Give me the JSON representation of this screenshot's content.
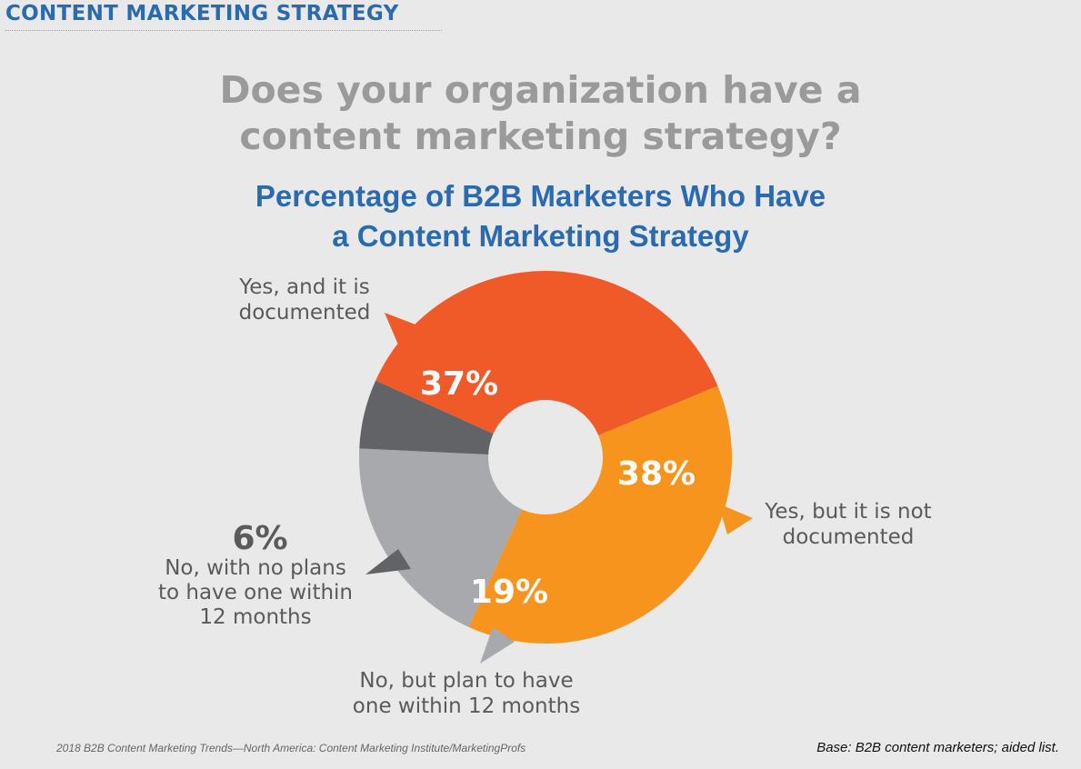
{
  "header": {
    "title": "CONTENT MARKETING STRATEGY"
  },
  "question": {
    "line1": "Does your organization have a",
    "line2": "content marketing strategy?"
  },
  "chart_data": {
    "type": "pie",
    "title": "Percentage of B2B Marketers Who Have",
    "title_line2": "a Content Marketing Strategy",
    "slices": [
      {
        "label_lines": [
          "Yes, and it is",
          "documented"
        ],
        "value": 37,
        "value_label": "37%",
        "color": "#f05a28"
      },
      {
        "label_lines": [
          "Yes, but it is not",
          "documented"
        ],
        "value": 38,
        "value_label": "38%",
        "color": "#f7941d"
      },
      {
        "label_lines": [
          "No, but plan to have",
          "one within 12 months"
        ],
        "value": 19,
        "value_label": "19%",
        "color": "#a7a9ac"
      },
      {
        "label_lines": [
          "No, with no plans",
          "to have one within",
          "12 months"
        ],
        "value": 6,
        "value_label": "6%",
        "color": "#626366"
      }
    ],
    "donut": true
  },
  "footer": {
    "source": "2018 B2B Content Marketing Trends—North America: Content Marketing Institute/MarketingProfs",
    "base": "Base: B2B content marketers; aided list."
  }
}
